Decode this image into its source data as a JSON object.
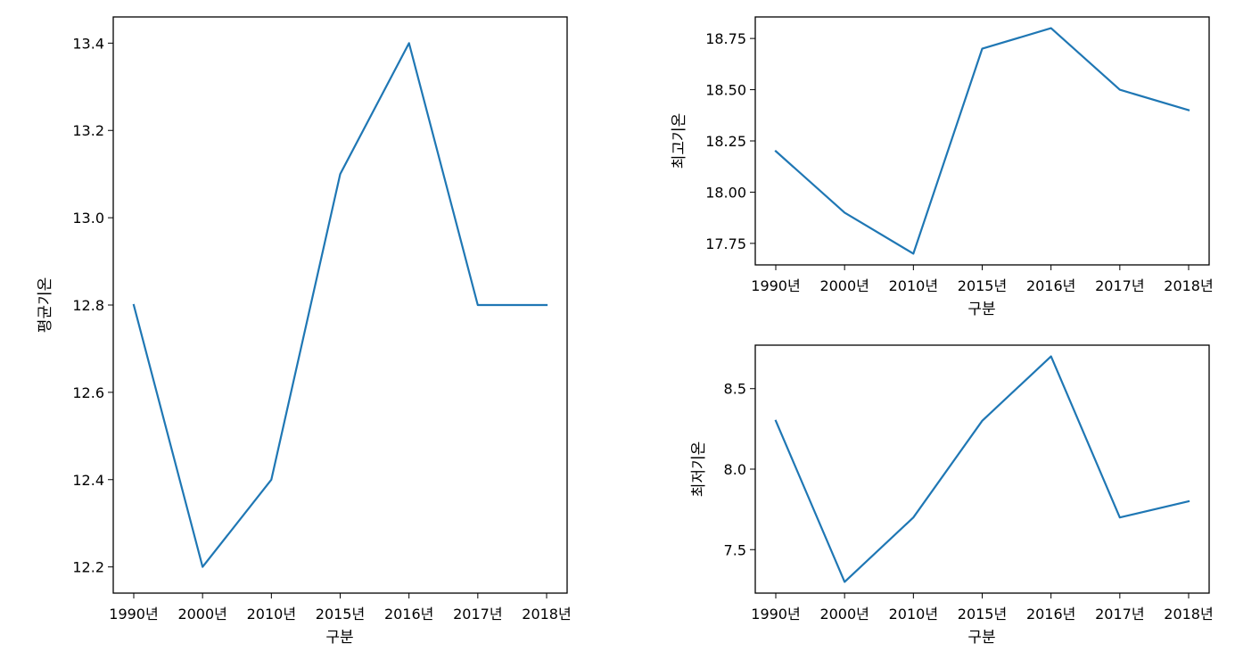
{
  "chart_data": [
    {
      "type": "line",
      "categories": [
        "1990년",
        "2000년",
        "2010년",
        "2015년",
        "2016년",
        "2017년",
        "2018년"
      ],
      "values": [
        12.8,
        12.2,
        12.4,
        13.1,
        13.4,
        12.8,
        12.8
      ],
      "xlabel": "구분",
      "ylabel": "평균기온",
      "ylim": [
        12.14,
        13.46
      ],
      "yticks": [
        12.2,
        12.4,
        12.6,
        12.8,
        13.0,
        13.2,
        13.4
      ],
      "ytick_labels": [
        "12.2",
        "12.4",
        "12.6",
        "12.8",
        "13.0",
        "13.2",
        "13.4"
      ],
      "grid": false,
      "color": "#1f77b4"
    },
    {
      "type": "line",
      "categories": [
        "1990년",
        "2000년",
        "2010년",
        "2015년",
        "2016년",
        "2017년",
        "2018년"
      ],
      "values": [
        18.2,
        17.9,
        17.7,
        18.7,
        18.8,
        18.5,
        18.4
      ],
      "xlabel": "구분",
      "ylabel": "최고기온",
      "ylim": [
        17.645,
        18.855
      ],
      "yticks": [
        17.75,
        18.0,
        18.25,
        18.5,
        18.75
      ],
      "ytick_labels": [
        "17.75",
        "18.00",
        "18.25",
        "18.50",
        "18.75"
      ],
      "grid": false,
      "color": "#1f77b4"
    },
    {
      "type": "line",
      "categories": [
        "1990년",
        "2000년",
        "2010년",
        "2015년",
        "2016년",
        "2017년",
        "2018년"
      ],
      "values": [
        8.3,
        7.3,
        7.7,
        8.3,
        8.7,
        7.7,
        7.8
      ],
      "xlabel": "구분",
      "ylabel": "최저기온",
      "ylim": [
        7.23,
        8.77
      ],
      "yticks": [
        7.5,
        8.0,
        8.5
      ],
      "ytick_labels": [
        "7.5",
        "8.0",
        "8.5"
      ],
      "grid": false,
      "color": "#1f77b4"
    }
  ]
}
